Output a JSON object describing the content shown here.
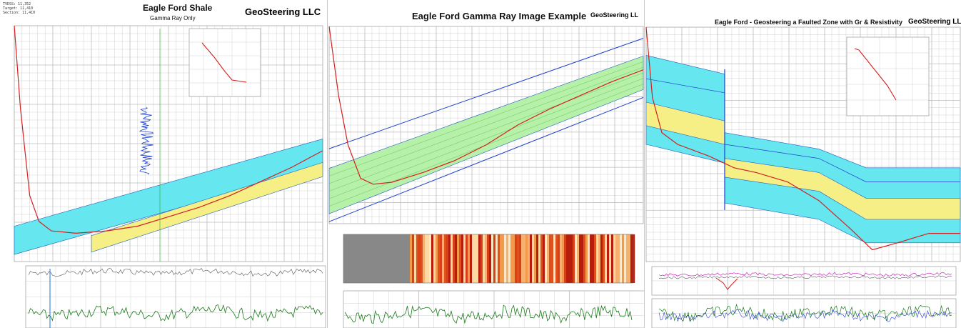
{
  "panels": [
    {
      "title": "Eagle Ford Shale",
      "subtitle": "Gamma Ray Only",
      "brand": "GeoSteering LLC",
      "brand_color": "#1a8a1a",
      "header_lines": [
        "TVDSS: 11,352",
        "Target: 11,410",
        "Section: 11,410"
      ]
    },
    {
      "title": "Eagle Ford Gamma Ray Image Example",
      "brand": "GeoSteering LL",
      "brand_color": "#1a8a1a"
    },
    {
      "title": "Eagle Ford - Geosteering a Faulted Zone with Gr & Resistivity",
      "brand": "GeoSteering LLC",
      "brand_color": "#1a8a1a"
    }
  ],
  "colors": {
    "target_zone": "#66e6ee",
    "yellow_zone": "#f5ef86",
    "green_zone": "#b7f0a8",
    "well_path": "#d42020",
    "gr_log": "#1a7a1a",
    "resistivity_log": "#d020c0",
    "boundary_line": "#2040d0",
    "grid": "#bbbbbb"
  },
  "icons": [
    "inset-trajectory-plot",
    "gamma-ray-image-strip"
  ],
  "chart_data": [
    {
      "type": "line",
      "title": "Eagle Ford Shale",
      "subtitle": "Gamma Ray Only",
      "series": [
        {
          "points": [
            [
              0,
              0
            ],
            [
              0.02,
              0.35
            ],
            [
              0.05,
              0.72
            ],
            [
              0.08,
              0.83
            ],
            [
              0.12,
              0.87
            ],
            [
              0.2,
              0.88
            ],
            [
              0.3,
              0.87
            ],
            [
              0.4,
              0.85
            ],
            [
              0.5,
              0.81
            ],
            [
              0.6,
              0.77
            ],
            [
              0.7,
              0.72
            ],
            [
              0.8,
              0.66
            ],
            [
              0.9,
              0.6
            ],
            [
              1.0,
              0.53
            ]
          ]
        }
      ],
      "zones": {
        "cyan_top": [
          [
            0,
            0.85
          ],
          [
            1,
            0.48
          ]
        ],
        "cyan_bottom": [
          [
            0,
            0.97
          ],
          [
            1,
            0.6
          ]
        ],
        "yellow_top": [
          [
            0.25,
            0.89
          ],
          [
            1,
            0.58
          ]
        ],
        "yellow_bottom": [
          [
            0.25,
            0.96
          ],
          [
            1,
            0.64
          ]
        ]
      }
    },
    {
      "type": "line",
      "title": "Eagle Ford Gamma Ray Image Example",
      "series": [
        {
          "points": [
            [
              0,
              0
            ],
            [
              0.03,
              0.35
            ],
            [
              0.06,
              0.6
            ],
            [
              0.1,
              0.77
            ],
            [
              0.14,
              0.8
            ],
            [
              0.2,
              0.79
            ],
            [
              0.3,
              0.74
            ],
            [
              0.4,
              0.68
            ],
            [
              0.5,
              0.6
            ],
            [
              0.6,
              0.5
            ],
            [
              0.7,
              0.42
            ],
            [
              0.8,
              0.35
            ],
            [
              0.9,
              0.28
            ],
            [
              1.0,
              0.22
            ]
          ]
        }
      ],
      "zones": {
        "green_top": [
          [
            0,
            0.72
          ],
          [
            1,
            0.15
          ]
        ],
        "green_bottom": [
          [
            0,
            0.95
          ],
          [
            1,
            0.32
          ]
        ]
      }
    },
    {
      "type": "line",
      "title": "Eagle Ford - Geosteering a Faulted Zone with Gr & Resistivity",
      "series": [
        {
          "points": [
            [
              0,
              0
            ],
            [
              0.02,
              0.3
            ],
            [
              0.05,
              0.45
            ],
            [
              0.1,
              0.5
            ],
            [
              0.2,
              0.55
            ],
            [
              0.28,
              0.6
            ],
            [
              0.35,
              0.62
            ],
            [
              0.45,
              0.66
            ],
            [
              0.55,
              0.74
            ],
            [
              0.65,
              0.86
            ],
            [
              0.72,
              0.95
            ],
            [
              0.8,
              0.92
            ],
            [
              0.9,
              0.88
            ],
            [
              1.0,
              0.88
            ]
          ]
        }
      ],
      "zones": {
        "cyan_top": [
          [
            0,
            0.12
          ],
          [
            0.3,
            0.22
          ],
          [
            0.3,
            0.5
          ],
          [
            0.55,
            0.58
          ],
          [
            0.7,
            0.7
          ],
          [
            1,
            0.7
          ]
        ],
        "cyan_bottom": [
          [
            0,
            0.5
          ],
          [
            0.3,
            0.58
          ],
          [
            0.3,
            0.9
          ],
          [
            0.55,
            0.92
          ],
          [
            0.7,
            1
          ],
          [
            1,
            1
          ]
        ]
      }
    }
  ]
}
